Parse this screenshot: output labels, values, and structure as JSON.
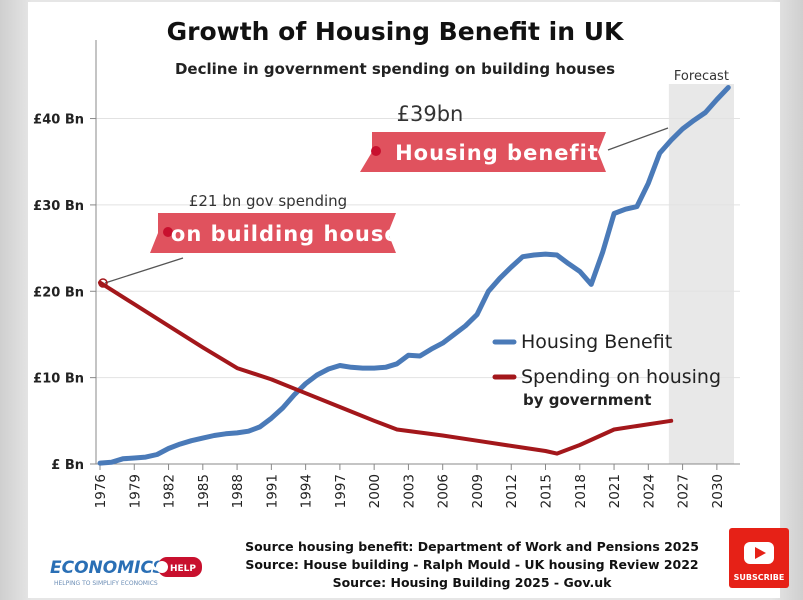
{
  "chart_data": {
    "type": "line",
    "title": "Growth of Housing Benefit in UK",
    "subtitle": "Decline in government spending on building houses",
    "x_ticks": [
      "1976",
      "1979",
      "1982",
      "1985",
      "1988",
      "1991",
      "1994",
      "1997",
      "2000",
      "2003",
      "2006",
      "2009",
      "2012",
      "2015",
      "2018",
      "2021",
      "2024",
      "2027",
      "2030"
    ],
    "xlim": [
      1976,
      2031.5
    ],
    "y_ticks": [
      {
        "value": 0,
        "label": "£ Bn"
      },
      {
        "value": 10,
        "label": "£10 Bn"
      },
      {
        "value": 20,
        "label": "£20 Bn"
      },
      {
        "value": 30,
        "label": "£30 Bn"
      },
      {
        "value": 40,
        "label": "£40 Bn"
      }
    ],
    "ylim": [
      0,
      44
    ],
    "grid": "horizontal",
    "forecast_region": {
      "from": 2025.8,
      "to": 2031.5,
      "label": "Forecast",
      "color": "#e8e8e8"
    },
    "series": [
      {
        "name": "Housing Benefit",
        "color": "#4a7ab8",
        "points": [
          [
            1976,
            0.1
          ],
          [
            1977,
            0.2
          ],
          [
            1978,
            0.6
          ],
          [
            1979,
            0.7
          ],
          [
            1980,
            0.8
          ],
          [
            1981,
            1.1
          ],
          [
            1982,
            1.8
          ],
          [
            1983,
            2.3
          ],
          [
            1984,
            2.7
          ],
          [
            1985,
            3.0
          ],
          [
            1986,
            3.3
          ],
          [
            1987,
            3.5
          ],
          [
            1988,
            3.6
          ],
          [
            1989,
            3.8
          ],
          [
            1990,
            4.3
          ],
          [
            1991,
            5.3
          ],
          [
            1992,
            6.5
          ],
          [
            1993,
            8.0
          ],
          [
            1994,
            9.3
          ],
          [
            1995,
            10.3
          ],
          [
            1996,
            11.0
          ],
          [
            1997,
            11.4
          ],
          [
            1998,
            11.2
          ],
          [
            1999,
            11.1
          ],
          [
            2000,
            11.1
          ],
          [
            2001,
            11.2
          ],
          [
            2002,
            11.6
          ],
          [
            2003,
            12.6
          ],
          [
            2004,
            12.5
          ],
          [
            2005,
            13.3
          ],
          [
            2006,
            14.0
          ],
          [
            2007,
            15.0
          ],
          [
            2008,
            16.0
          ],
          [
            2009,
            17.3
          ],
          [
            2010,
            20.0
          ],
          [
            2011,
            21.5
          ],
          [
            2012,
            22.8
          ],
          [
            2013,
            24.0
          ],
          [
            2014,
            24.2
          ],
          [
            2015,
            24.3
          ],
          [
            2016,
            24.2
          ],
          [
            2017,
            23.2
          ],
          [
            2018,
            22.3
          ],
          [
            2019,
            20.8
          ],
          [
            2020,
            24.5
          ],
          [
            2021,
            29.0
          ],
          [
            2022,
            29.5
          ],
          [
            2023,
            29.8
          ],
          [
            2024,
            32.5
          ],
          [
            2025,
            36.0
          ],
          [
            2026,
            37.5
          ],
          [
            2027,
            38.8
          ],
          [
            2028,
            39.8
          ],
          [
            2029,
            40.7
          ],
          [
            2030,
            42.2
          ],
          [
            2031,
            43.6
          ]
        ]
      },
      {
        "name": "Spending on housing",
        "color": "#a3171b",
        "points": [
          [
            1976,
            21.0
          ],
          [
            1979,
            18.5
          ],
          [
            1982,
            16.0
          ],
          [
            1985,
            13.5
          ],
          [
            1988,
            11.1
          ],
          [
            1991,
            9.8
          ],
          [
            1994,
            8.2
          ],
          [
            1997,
            6.6
          ],
          [
            2000,
            5.0
          ],
          [
            2002,
            4.0
          ],
          [
            2006,
            3.3
          ],
          [
            2009,
            2.7
          ],
          [
            2012,
            2.1
          ],
          [
            2015,
            1.5
          ],
          [
            2016,
            1.2
          ],
          [
            2018,
            2.2
          ],
          [
            2021,
            4.0
          ],
          [
            2026,
            5.0
          ]
        ]
      }
    ],
    "legend": {
      "placement": "bottom-right",
      "items": [
        {
          "label": "Housing Benefit",
          "color": "#4a7ab8"
        },
        {
          "label": "Spending on housing",
          "sublabel": "by government",
          "color": "#a3171b"
        }
      ]
    },
    "annotations": [
      {
        "text": "£21 bn gov spending",
        "ribbon": "on building houses",
        "color": "#e0525e",
        "point": [
          1976,
          21.0
        ]
      },
      {
        "text": "£39bn",
        "ribbon": "Housing benefit",
        "color": "#e0525e",
        "point": [
          2025.5,
          38.5
        ]
      }
    ],
    "sources": [
      "Source housing benefit: Department of Work and Pensions 2025",
      "Source: House building - Ralph Mould - UK housing Review 2022",
      "Source: Housing Building 2025 - Gov.uk"
    ]
  },
  "branding": {
    "logo_text": "ECONOMICS",
    "logo_badge": "HELP",
    "logo_tagline": "HELPING TO SIMPLIFY ECONOMICS",
    "subscribe_label": "SUBSCRIBE",
    "subscribe_color": "#e62117"
  }
}
